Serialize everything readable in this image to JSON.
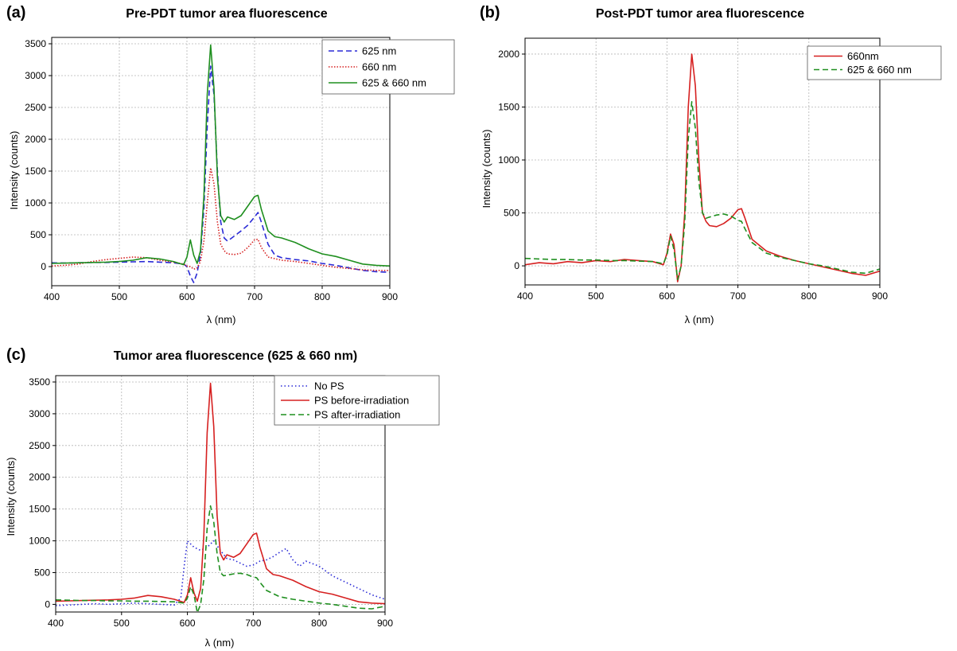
{
  "chart_data": [
    {
      "type": "line",
      "panel": "(a)",
      "title": "Pre-PDT tumor area fluorescence",
      "xlabel": "λ (nm)",
      "ylabel": "Intensity (counts)",
      "xlim": [
        400,
        900
      ],
      "ylim": [
        -300,
        3600
      ],
      "xticks": [
        400,
        500,
        600,
        700,
        800,
        900
      ],
      "yticks": [
        0,
        500,
        1000,
        1500,
        2000,
        2500,
        3000,
        3500
      ],
      "grid": true,
      "legend_position": "top-right",
      "series": [
        {
          "name": "625 nm",
          "color": "#2a2ad6",
          "dash": "7 4",
          "x": [
            400,
            420,
            440,
            460,
            480,
            500,
            520,
            540,
            560,
            580,
            595,
            600,
            605,
            610,
            615,
            620,
            625,
            630,
            635,
            640,
            645,
            650,
            655,
            660,
            670,
            680,
            690,
            700,
            705,
            710,
            720,
            730,
            740,
            760,
            780,
            800,
            820,
            840,
            860,
            880,
            900
          ],
          "y": [
            60,
            55,
            60,
            65,
            65,
            70,
            75,
            80,
            70,
            60,
            40,
            0,
            -150,
            -250,
            -100,
            200,
            900,
            2200,
            3150,
            2700,
            1500,
            700,
            450,
            400,
            480,
            560,
            650,
            780,
            850,
            700,
            350,
            180,
            140,
            110,
            90,
            50,
            20,
            -20,
            -60,
            -80,
            -90
          ]
        },
        {
          "name": "660 nm",
          "color": "#d62020",
          "dash": "1.5 2",
          "x": [
            400,
            420,
            440,
            460,
            480,
            500,
            520,
            540,
            560,
            580,
            595,
            600,
            605,
            610,
            615,
            620,
            625,
            630,
            635,
            640,
            645,
            650,
            655,
            660,
            670,
            680,
            690,
            700,
            705,
            710,
            720,
            740,
            760,
            780,
            800,
            820,
            840,
            860,
            880,
            900
          ],
          "y": [
            10,
            20,
            40,
            80,
            110,
            130,
            150,
            140,
            100,
            70,
            40,
            10,
            0,
            -40,
            -20,
            80,
            400,
            1000,
            1550,
            1300,
            700,
            350,
            250,
            200,
            190,
            210,
            300,
            420,
            430,
            300,
            150,
            100,
            80,
            50,
            20,
            -10,
            -30,
            -50,
            -60,
            -60
          ]
        },
        {
          "name": "625 & 660 nm",
          "color": "#1f8f1f",
          "dash": "",
          "x": [
            400,
            420,
            440,
            460,
            480,
            500,
            520,
            540,
            560,
            580,
            595,
            600,
            605,
            610,
            615,
            620,
            625,
            630,
            635,
            640,
            645,
            650,
            655,
            660,
            670,
            680,
            690,
            700,
            705,
            710,
            720,
            730,
            740,
            760,
            780,
            800,
            820,
            840,
            860,
            880,
            900
          ],
          "y": [
            50,
            55,
            60,
            65,
            70,
            80,
            100,
            140,
            120,
            80,
            30,
            150,
            420,
            180,
            50,
            250,
            1100,
            2700,
            3480,
            2800,
            1400,
            800,
            700,
            780,
            740,
            800,
            950,
            1100,
            1120,
            900,
            560,
            470,
            450,
            380,
            280,
            200,
            160,
            100,
            40,
            20,
            10
          ]
        }
      ]
    },
    {
      "type": "line",
      "panel": "(b)",
      "title": "Post-PDT tumor area fluorescence",
      "xlabel": "λ (nm)",
      "ylabel": "Intensity (counts)",
      "xlim": [
        400,
        900
      ],
      "ylim": [
        -180,
        2150
      ],
      "xticks": [
        400,
        500,
        600,
        700,
        800,
        900
      ],
      "yticks": [
        0,
        500,
        1000,
        1500,
        2000
      ],
      "grid": true,
      "legend_position": "top-right",
      "series": [
        {
          "name": "660nm",
          "color": "#d62020",
          "dash": "",
          "x": [
            400,
            420,
            440,
            460,
            480,
            500,
            520,
            540,
            560,
            580,
            595,
            600,
            605,
            610,
            615,
            620,
            625,
            630,
            635,
            640,
            645,
            650,
            655,
            660,
            670,
            680,
            690,
            700,
            705,
            710,
            720,
            740,
            760,
            780,
            800,
            820,
            840,
            860,
            880,
            900
          ],
          "y": [
            10,
            30,
            20,
            40,
            30,
            50,
            40,
            60,
            50,
            40,
            10,
            120,
            300,
            200,
            -150,
            0,
            500,
            1500,
            2000,
            1700,
            1000,
            500,
            420,
            380,
            370,
            400,
            450,
            530,
            540,
            450,
            250,
            140,
            90,
            50,
            20,
            -10,
            -40,
            -70,
            -90,
            -50
          ]
        },
        {
          "name": "625 & 660 nm",
          "color": "#1f8f1f",
          "dash": "7 4",
          "x": [
            400,
            420,
            440,
            460,
            480,
            500,
            520,
            540,
            560,
            580,
            595,
            600,
            605,
            610,
            615,
            620,
            625,
            630,
            635,
            640,
            645,
            650,
            655,
            660,
            670,
            680,
            690,
            700,
            705,
            710,
            720,
            740,
            760,
            780,
            800,
            820,
            840,
            860,
            880,
            900
          ],
          "y": [
            70,
            65,
            60,
            60,
            55,
            55,
            50,
            50,
            45,
            40,
            20,
            100,
            280,
            150,
            -130,
            0,
            400,
            1200,
            1550,
            1300,
            800,
            500,
            450,
            460,
            480,
            490,
            470,
            430,
            420,
            350,
            220,
            120,
            80,
            50,
            20,
            0,
            -30,
            -60,
            -70,
            -30
          ]
        }
      ]
    },
    {
      "type": "line",
      "panel": "(c)",
      "title": "Tumor area fluorescence (625 & 660 nm)",
      "xlabel": "λ (nm)",
      "ylabel": "Intensity (counts)",
      "xlim": [
        400,
        900
      ],
      "ylim": [
        -120,
        3600
      ],
      "xticks": [
        400,
        500,
        600,
        700,
        800,
        900
      ],
      "yticks": [
        0,
        500,
        1000,
        1500,
        2000,
        2500,
        3000,
        3500
      ],
      "grid": true,
      "legend_position": "top-right",
      "series": [
        {
          "name": "No PS",
          "color": "#2a2ad6",
          "dash": "1.5 3",
          "x": [
            400,
            420,
            440,
            460,
            480,
            500,
            520,
            540,
            560,
            580,
            590,
            595,
            600,
            605,
            610,
            620,
            630,
            640,
            650,
            660,
            670,
            680,
            690,
            700,
            710,
            720,
            730,
            740,
            750,
            760,
            770,
            780,
            800,
            820,
            840,
            860,
            880,
            900
          ],
          "y": [
            -20,
            -10,
            0,
            10,
            0,
            10,
            20,
            10,
            0,
            -10,
            100,
            600,
            1000,
            950,
            900,
            850,
            900,
            1000,
            850,
            720,
            700,
            650,
            600,
            620,
            680,
            700,
            750,
            820,
            880,
            700,
            600,
            680,
            600,
            450,
            350,
            250,
            150,
            80
          ]
        },
        {
          "name": "PS before-irradiation",
          "color": "#d62020",
          "dash": "",
          "x": [
            400,
            420,
            440,
            460,
            480,
            500,
            520,
            540,
            560,
            580,
            595,
            600,
            605,
            610,
            615,
            620,
            625,
            630,
            635,
            640,
            645,
            650,
            655,
            660,
            670,
            680,
            690,
            700,
            705,
            710,
            720,
            730,
            740,
            760,
            780,
            800,
            820,
            840,
            860,
            880,
            900
          ],
          "y": [
            50,
            55,
            60,
            65,
            70,
            80,
            100,
            140,
            120,
            80,
            30,
            150,
            420,
            180,
            50,
            250,
            1100,
            2700,
            3480,
            2800,
            1400,
            800,
            700,
            780,
            740,
            800,
            950,
            1100,
            1120,
            900,
            560,
            470,
            450,
            380,
            280,
            200,
            160,
            100,
            40,
            20,
            10
          ]
        },
        {
          "name": "PS after-irradiation",
          "color": "#1f8f1f",
          "dash": "7 4",
          "x": [
            400,
            420,
            440,
            460,
            480,
            500,
            520,
            540,
            560,
            580,
            595,
            600,
            605,
            610,
            615,
            620,
            625,
            630,
            635,
            640,
            645,
            650,
            655,
            660,
            670,
            680,
            690,
            700,
            705,
            710,
            720,
            740,
            760,
            780,
            800,
            820,
            840,
            860,
            880,
            900
          ],
          "y": [
            70,
            65,
            60,
            60,
            55,
            55,
            50,
            50,
            45,
            40,
            20,
            100,
            280,
            150,
            -130,
            0,
            400,
            1200,
            1550,
            1300,
            800,
            500,
            450,
            460,
            480,
            490,
            470,
            430,
            420,
            350,
            220,
            120,
            80,
            50,
            20,
            0,
            -30,
            -60,
            -70,
            -30
          ]
        }
      ]
    }
  ]
}
